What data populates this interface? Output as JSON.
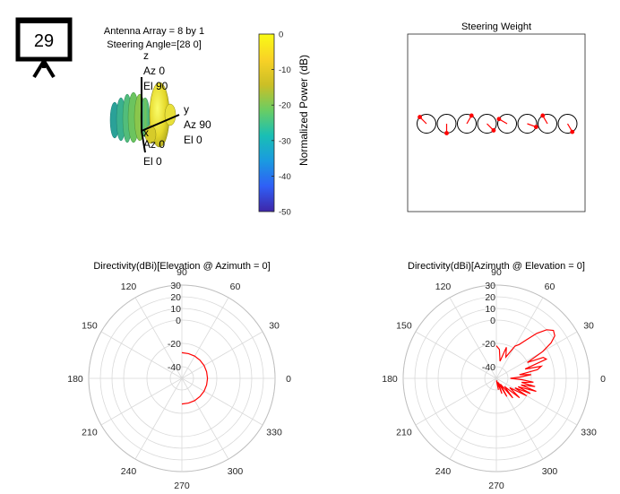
{
  "slide_badge": {
    "number": "29"
  },
  "panel_3d": {
    "title_lines": [
      "Antenna Array = 8 by 1",
      "Steering Angle=[28 0]"
    ],
    "axis_z": {
      "name": "z",
      "az": "Az 0",
      "el": "El 90"
    },
    "axis_y": {
      "name": "y",
      "az": "Az 90",
      "el": "El 0"
    },
    "axis_x": {
      "name": "x",
      "az": "Az 0",
      "el": "El 0"
    }
  },
  "colorbar": {
    "label": "Normalized Power (dB)",
    "ticks": [
      "0",
      "-10",
      "-20",
      "-30",
      "-40",
      "-50"
    ],
    "range": [
      -50,
      0
    ],
    "colors": [
      "#3e26a8",
      "#2f5ff6",
      "#1a9ae0",
      "#19bfb4",
      "#6acd63",
      "#cbbf26",
      "#f9d226",
      "#f9fb15"
    ]
  },
  "chart_data": [
    {
      "type": "scatter",
      "title": "Steering Weight",
      "description_label": "",
      "elements": 8,
      "circle_color": "#000000",
      "weight_color": "#ff0000",
      "phase_deg": [
        135,
        -90,
        60,
        -45,
        150,
        -20,
        120,
        -60
      ]
    },
    {
      "type": "line",
      "polar": true,
      "title": "Directivity(dBi)[Elevation @ Azimuth = 0]",
      "r_ticks": [
        "30",
        "20",
        "10",
        "0",
        "-20",
        "-40"
      ],
      "r_tick_values": [
        30,
        20,
        10,
        0,
        -20,
        -40
      ],
      "rlim": [
        -50,
        30
      ],
      "theta_ticks": [
        "0",
        "30",
        "60",
        "90",
        "120",
        "150",
        "180",
        "210",
        "240",
        "270",
        "300",
        "330"
      ],
      "series": [
        {
          "color": "#ff0000",
          "theta_deg": [
            90,
            75,
            60,
            45,
            30,
            15,
            0,
            -15,
            -30,
            -45,
            -60,
            -75,
            -90
          ],
          "r_db": [
            -28,
            -28,
            -28,
            -28,
            -28,
            -28,
            -28,
            -28,
            -28,
            -28,
            -28,
            -28,
            -28
          ]
        }
      ]
    },
    {
      "type": "line",
      "polar": true,
      "title": "Directivity(dBi)[Azimuth @ Elevation = 0]",
      "r_ticks": [
        "30",
        "20",
        "10",
        "0",
        "-20",
        "-40"
      ],
      "r_tick_values": [
        30,
        20,
        10,
        0,
        -20,
        -40
      ],
      "rlim": [
        -50,
        30
      ],
      "theta_ticks": [
        "0",
        "30",
        "60",
        "90",
        "120",
        "150",
        "180",
        "210",
        "240",
        "270",
        "300",
        "330"
      ],
      "series": [
        {
          "color": "#ff0000",
          "theta_deg": [
            90,
            84,
            78,
            72,
            66,
            60,
            56,
            52,
            48,
            44,
            40,
            36,
            33,
            30,
            27,
            24,
            21,
            18,
            15,
            12,
            9,
            6,
            3,
            0,
            -3,
            -6,
            -9,
            -12,
            -15,
            -18,
            -21,
            -24,
            -27,
            -30,
            -35,
            -40,
            -45,
            -50,
            -55,
            -60,
            -65,
            -70,
            -75,
            -80,
            -85,
            -90
          ],
          "r_db": [
            -22,
            -25,
            -35,
            -22,
            -30,
            -18,
            -15,
            -8,
            2,
            10,
            14,
            12,
            6,
            -4,
            -20,
            -6,
            -4,
            -24,
            -10,
            -14,
            -30,
            -20,
            -30,
            -38,
            -28,
            -18,
            -28,
            -16,
            -28,
            -14,
            -30,
            -18,
            -32,
            -20,
            -36,
            -24,
            -40,
            -28,
            -44,
            -32,
            -46,
            -36,
            -47,
            -40,
            -48,
            -48
          ]
        }
      ]
    }
  ]
}
